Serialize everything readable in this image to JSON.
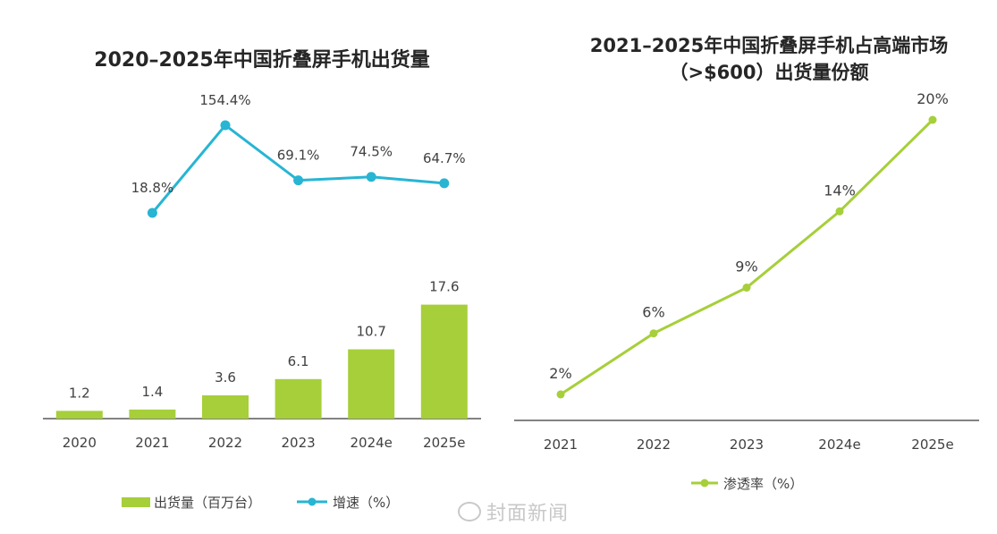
{
  "chart_data": [
    {
      "type": "bar+line",
      "title": "2020–2025年中国折叠屏手机出货量",
      "categories": [
        "2020",
        "2021",
        "2022",
        "2023",
        "2024e",
        "2025e"
      ],
      "series": [
        {
          "name": "出货量（百万台）",
          "type": "bar",
          "values": [
            1.2,
            1.4,
            3.6,
            6.1,
            10.7,
            17.6
          ],
          "labels": [
            "1.2",
            "1.4",
            "3.6",
            "6.1",
            "10.7",
            "17.6"
          ],
          "color": "#a6cf3a"
        },
        {
          "name": "增速（%）",
          "type": "line",
          "values": [
            null,
            18.8,
            154.4,
            69.1,
            74.5,
            64.7
          ],
          "labels": [
            "",
            "18.8%",
            "154.4%",
            "69.1%",
            "74.5%",
            "64.7%"
          ],
          "color": "#27b5d3"
        }
      ],
      "legend": "bottom",
      "grid": false
    },
    {
      "type": "line",
      "title_lines": [
        "2021–2025年中国折叠屏手机占高端市场",
        "（>$600）出货量份额"
      ],
      "categories": [
        "2021",
        "2022",
        "2023",
        "2024e",
        "2025e"
      ],
      "series": [
        {
          "name": "渗透率（%）",
          "values": [
            2,
            6,
            9,
            14,
            20
          ],
          "labels": [
            "2%",
            "6%",
            "9%",
            "14%",
            "20%"
          ],
          "color": "#a6cf3a"
        }
      ],
      "legend": "bottom",
      "grid": false
    }
  ],
  "watermark": "封面新闻",
  "colors": {
    "axis": "#595959",
    "text": "#404040",
    "title": "#262626"
  }
}
